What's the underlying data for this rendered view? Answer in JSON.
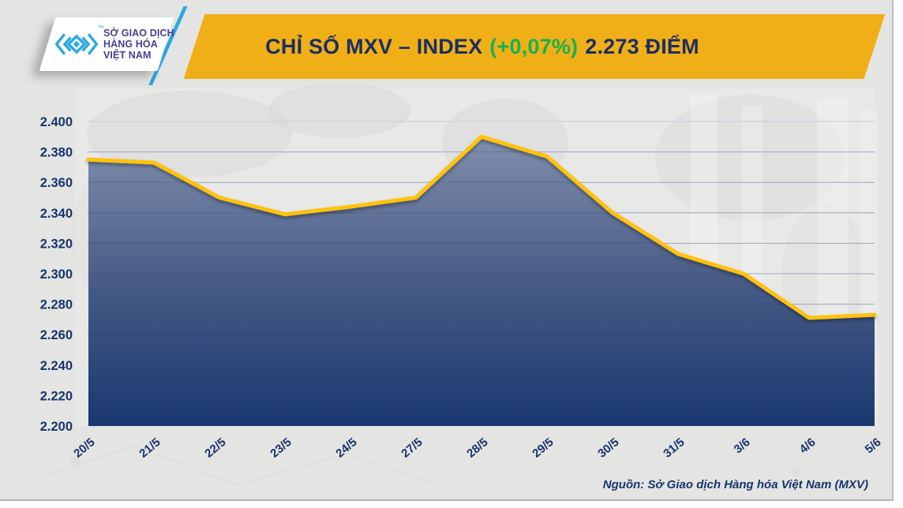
{
  "header": {
    "title_main": "CHỈ SỐ MXV – INDEX",
    "title_change": "(+0,07%)",
    "title_points": "2.273 ĐIỂM"
  },
  "logo": {
    "trademark": "™",
    "lines": [
      "SỞ GIAO DỊCH",
      "HÀNG HÓA",
      "VIỆT NAM"
    ]
  },
  "footer": {
    "source": "Nguồn: Sở Giao dịch Hàng hóa Việt Nam (MXV)"
  },
  "chart_data": {
    "type": "area",
    "title": "CHỈ SỐ MXV – INDEX (+0,07%) 2.273 ĐIỂM",
    "categories": [
      "20/5",
      "21/5",
      "22/5",
      "23/5",
      "24/5",
      "27/5",
      "28/5",
      "29/5",
      "30/5",
      "31/5",
      "3/6",
      "4/6",
      "5/6"
    ],
    "values": [
      2375,
      2373,
      2350,
      2339,
      2344,
      2350,
      2390,
      2377,
      2340,
      2313,
      2300,
      2271,
      2273
    ],
    "ylim": [
      2200,
      2400
    ],
    "ytick_step": 20,
    "y_tick_labels": [
      "2.200",
      "2.220",
      "2.240",
      "2.260",
      "2.280",
      "2.300",
      "2.320",
      "2.340",
      "2.360",
      "2.380",
      "2.400"
    ],
    "grid": "horizontal",
    "legend": "none",
    "xlabel": "",
    "ylabel": "",
    "colors": {
      "line": "#FFC20E",
      "area_top": "#8795B2",
      "area_mid": "#4A5E88",
      "area_bottom": "#1A3870",
      "gridline": "#C2CBDA",
      "tick_label": "#17356B"
    }
  },
  "theme": {
    "banner_yellow": "#F1AF17",
    "title_navy": "#1A2E63",
    "change_green": "#17B24F",
    "logo_cyan": "#2AA9E0",
    "logo_purple": "#4B3E8E",
    "panel_gray": "#E4E4E3"
  }
}
